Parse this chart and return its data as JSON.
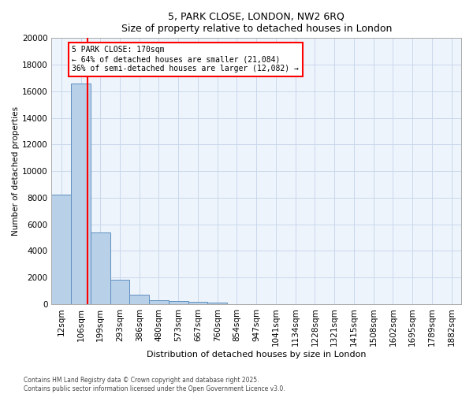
{
  "title_line1": "5, PARK CLOSE, LONDON, NW2 6RQ",
  "title_line2": "Size of property relative to detached houses in London",
  "xlabel": "Distribution of detached houses by size in London",
  "ylabel": "Number of detached properties",
  "bin_labels": [
    "12sqm",
    "106sqm",
    "199sqm",
    "293sqm",
    "386sqm",
    "480sqm",
    "573sqm",
    "667sqm",
    "760sqm",
    "854sqm",
    "947sqm",
    "1041sqm",
    "1134sqm",
    "1228sqm",
    "1321sqm",
    "1415sqm",
    "1508sqm",
    "1602sqm",
    "1695sqm",
    "1789sqm",
    "1882sqm"
  ],
  "bar_values": [
    8200,
    16600,
    5400,
    1850,
    700,
    300,
    200,
    150,
    130,
    0,
    0,
    0,
    0,
    0,
    0,
    0,
    0,
    0,
    0,
    0,
    0
  ],
  "bar_color": "#b8d0e8",
  "bar_edge_color": "#6090c0",
  "grid_color": "#c8d8ec",
  "background_color": "#eef4fb",
  "vline_x_bin": 1.85,
  "vline_color": "red",
  "annotation_text": "5 PARK CLOSE: 170sqm\n← 64% of detached houses are smaller (21,084)\n36% of semi-detached houses are larger (12,082) →",
  "annotation_box_color": "white",
  "annotation_box_edge": "red",
  "ylim": [
    0,
    20000
  ],
  "yticks": [
    0,
    2000,
    4000,
    6000,
    8000,
    10000,
    12000,
    14000,
    16000,
    18000,
    20000
  ],
  "footer_line1": "Contains HM Land Registry data © Crown copyright and database right 2025.",
  "footer_line2": "Contains public sector information licensed under the Open Government Licence v3.0."
}
